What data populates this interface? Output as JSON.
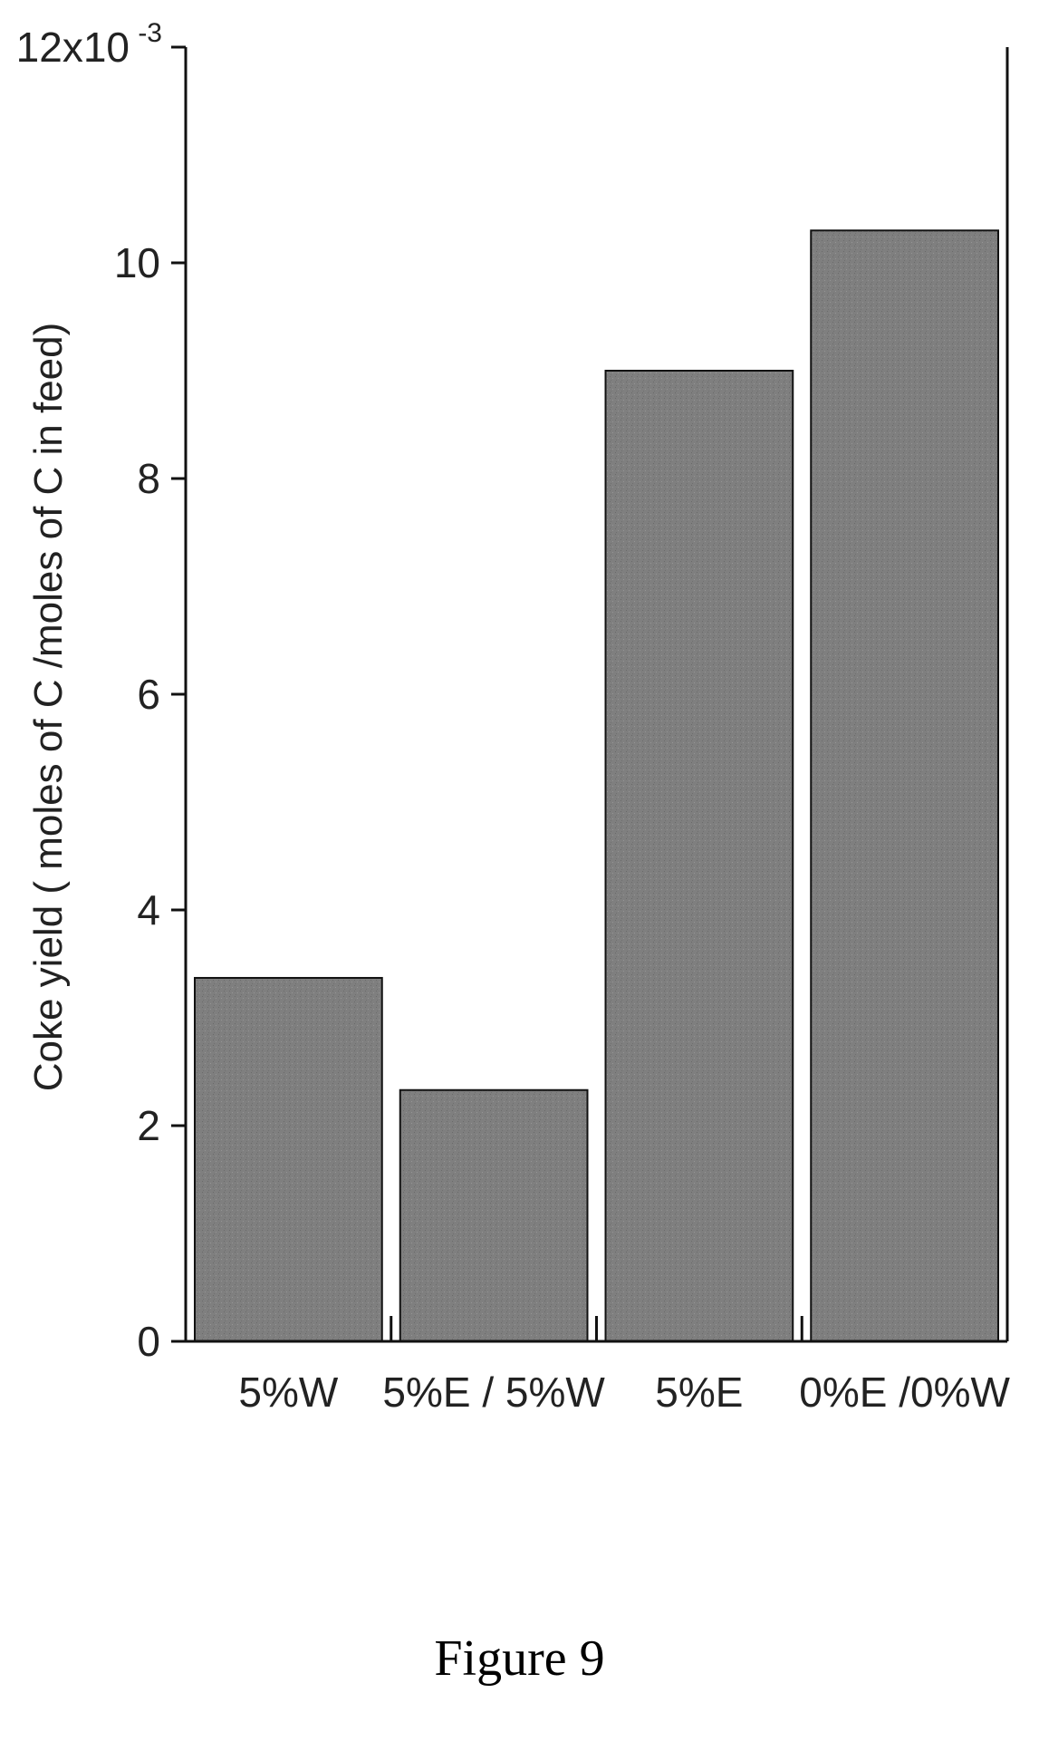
{
  "caption": "Figure 9",
  "colors": {
    "bar_fill": "#7f7f7f",
    "bar_stroke": "#111111",
    "axis": "#111111"
  },
  "chart_data": {
    "type": "bar",
    "categories": [
      "5%W",
      "5%E / 5%W",
      "5%E",
      "0%E /0%W"
    ],
    "values": [
      0.00337,
      0.00233,
      0.009,
      0.0103
    ],
    "ylabel": "Coke yield ( moles of C /moles of C in feed)",
    "ylim": [
      0,
      0.012
    ],
    "yticks": [
      0,
      2,
      4,
      6,
      8,
      10,
      12
    ],
    "ytick_labels": [
      "0",
      "2",
      "4",
      "6",
      "8",
      "10",
      "12x10"
    ],
    "y_exponent_label": "-3",
    "grid": false
  }
}
